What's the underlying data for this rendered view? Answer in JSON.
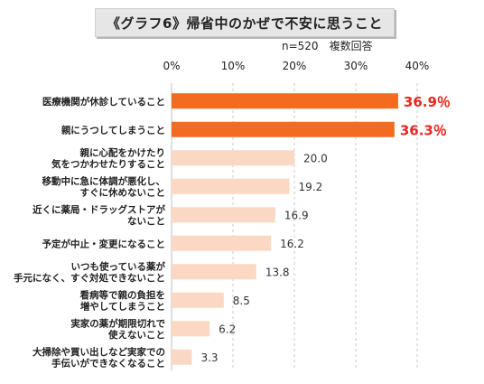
{
  "title": "《グラフ6》帰省中のかぜで不安に思うこと",
  "sample_note": "n=520　複数回答",
  "colors": {
    "highlight_bar": "#f36b21",
    "normal_bar": "#fbd8c4",
    "highlight_label": "#e5281e",
    "grid": "#c8c8c8"
  },
  "chart_data": {
    "type": "bar",
    "orientation": "horizontal",
    "title": "《グラフ6》帰省中のかぜで不安に思うこと",
    "xlim": [
      0,
      40
    ],
    "x_ticks": [
      "0%",
      "10%",
      "20%",
      "30%",
      "40%"
    ],
    "grid": true,
    "categories": [
      [
        "医療機関が休診していること"
      ],
      [
        "親にうつしてしまうこと"
      ],
      [
        "親に心配をかけたり",
        "気をつかわせたりすること"
      ],
      [
        "移動中に急に体調が悪化し、",
        "すぐに休めないこと"
      ],
      [
        "近くに薬局・ドラッグストアが",
        "ないこと"
      ],
      [
        "予定が中止・変更になること"
      ],
      [
        "いつも使っている薬が",
        "手元になく、すぐ対処できないこと"
      ],
      [
        "看病等で親の負担を",
        "増やしてしまうこと"
      ],
      [
        "実家の薬が期限切れで",
        "使えないこと"
      ],
      [
        "大掃除や買い出しなど実家での",
        "手伝いができなくなること"
      ]
    ],
    "values": [
      36.9,
      36.3,
      20.0,
      19.2,
      16.9,
      16.2,
      13.8,
      8.5,
      6.2,
      3.3
    ],
    "value_labels": [
      "36.9％",
      "36.3％",
      "20.0",
      "19.2",
      "16.9",
      "16.2",
      "13.8",
      "8.5",
      "6.2",
      "3.3"
    ],
    "highlighted": [
      true,
      true,
      false,
      false,
      false,
      false,
      false,
      false,
      false,
      false
    ]
  }
}
